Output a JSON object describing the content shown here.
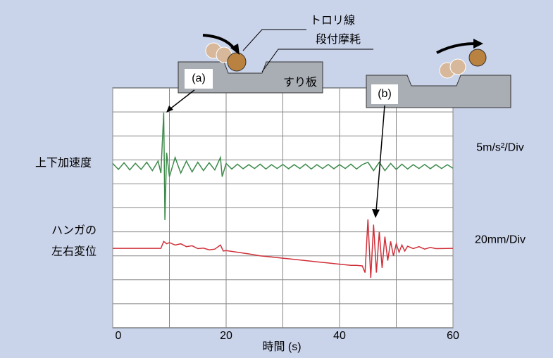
{
  "chart_data": {
    "type": "line",
    "xlabel": "時間 (s)",
    "xlim": [
      0,
      60
    ],
    "xticks": [
      0,
      20,
      40,
      60
    ],
    "ylim": [
      0,
      10
    ],
    "grid": true,
    "series": [
      {
        "name": [
          "上下加速度"
        ],
        "scale_label": "5m/s²/Div",
        "color": "#3d8a4a",
        "x": [
          0,
          1,
          2,
          3,
          4,
          5,
          6,
          7,
          8,
          8.5,
          9,
          9.2,
          9.5,
          10,
          11,
          12,
          13,
          14,
          15,
          16,
          17,
          18,
          19,
          19.3,
          20,
          21,
          22,
          23,
          24,
          25,
          26,
          27,
          28,
          29,
          30,
          31,
          32,
          33,
          34,
          35,
          36,
          37,
          38,
          39,
          40,
          41,
          42,
          43,
          44,
          45,
          46,
          47,
          48,
          49,
          50,
          51,
          52,
          53,
          54,
          55,
          56,
          57,
          58,
          59,
          60
        ],
        "values": [
          6.85,
          6.6,
          6.88,
          6.58,
          6.86,
          6.6,
          6.9,
          6.55,
          6.95,
          6.45,
          8.97,
          4.49,
          7.3,
          6.3,
          7.1,
          6.45,
          6.95,
          6.5,
          6.9,
          6.55,
          6.88,
          6.58,
          7.1,
          6.3,
          6.85,
          6.62,
          6.82,
          6.63,
          6.8,
          6.64,
          6.82,
          6.62,
          6.8,
          6.64,
          6.81,
          6.63,
          6.8,
          6.64,
          6.82,
          6.62,
          6.8,
          6.64,
          6.81,
          6.63,
          6.8,
          6.64,
          6.82,
          6.62,
          6.8,
          6.9,
          6.55,
          6.9,
          6.55,
          6.85,
          6.6,
          6.82,
          6.62,
          6.8,
          6.64,
          6.81,
          6.63,
          6.8,
          6.64,
          6.8,
          6.65
        ]
      },
      {
        "name": [
          "ハンガの",
          "左右変位"
        ],
        "scale_label": "20mm/Div",
        "color": "#d0303a",
        "x": [
          0,
          8.5,
          9,
          9.5,
          10,
          11,
          12,
          13,
          14,
          15,
          16,
          17,
          18,
          19,
          19.5,
          20,
          22,
          24,
          26,
          28,
          30,
          32,
          34,
          36,
          38,
          40,
          42,
          43,
          44,
          44.5,
          45,
          45.5,
          46,
          46.5,
          47,
          47.5,
          48,
          48.5,
          49,
          49.5,
          50,
          50.5,
          51,
          51.5,
          52,
          53,
          54,
          55,
          56,
          57,
          60
        ],
        "values": [
          3.31,
          3.31,
          3.6,
          3.5,
          3.55,
          3.45,
          3.5,
          3.38,
          3.42,
          3.3,
          3.32,
          3.25,
          3.28,
          3.45,
          3.2,
          3.22,
          3.15,
          3.08,
          3.0,
          2.95,
          2.9,
          2.85,
          2.8,
          2.75,
          2.7,
          2.65,
          2.6,
          2.6,
          2.58,
          2.3,
          4.52,
          2.08,
          4.3,
          2.3,
          4.0,
          2.5,
          3.8,
          2.8,
          3.6,
          3.0,
          3.5,
          3.15,
          3.45,
          3.2,
          3.4,
          3.3,
          3.38,
          3.28,
          3.35,
          3.3,
          3.31
        ]
      }
    ],
    "annotations": {
      "wire": "トロリ線",
      "wear": "段付摩耗",
      "strip": "すり板",
      "a": "(a)",
      "b": "(b)"
    }
  }
}
